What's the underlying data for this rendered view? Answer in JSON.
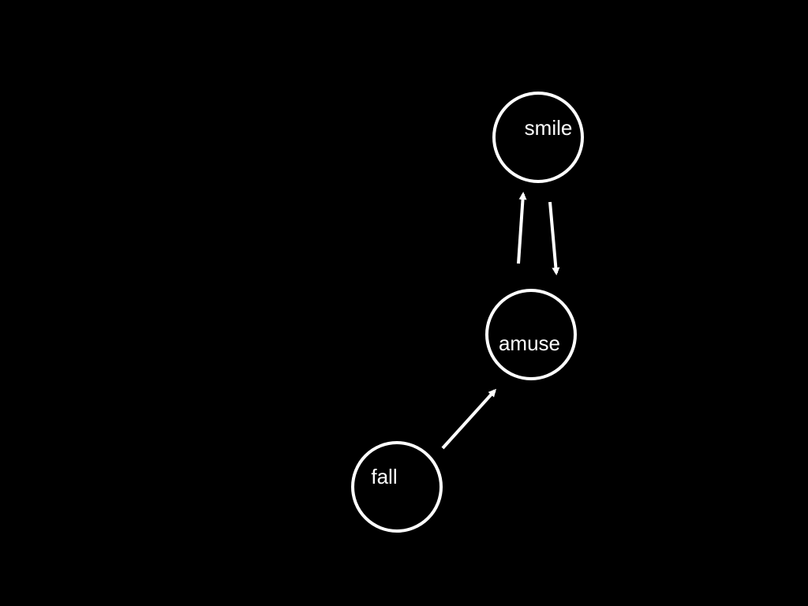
{
  "diagram": {
    "background": "#000000",
    "stroke_color": "#ffffff",
    "text_color": "#ffffff",
    "nodes": [
      {
        "id": "smile",
        "label": "smile"
      },
      {
        "id": "amuse",
        "label": "amuse"
      },
      {
        "id": "fall",
        "label": "fall"
      }
    ],
    "edges": [
      {
        "from": "amuse",
        "to": "smile"
      },
      {
        "from": "smile",
        "to": "amuse"
      },
      {
        "from": "fall",
        "to": "amuse"
      }
    ]
  }
}
